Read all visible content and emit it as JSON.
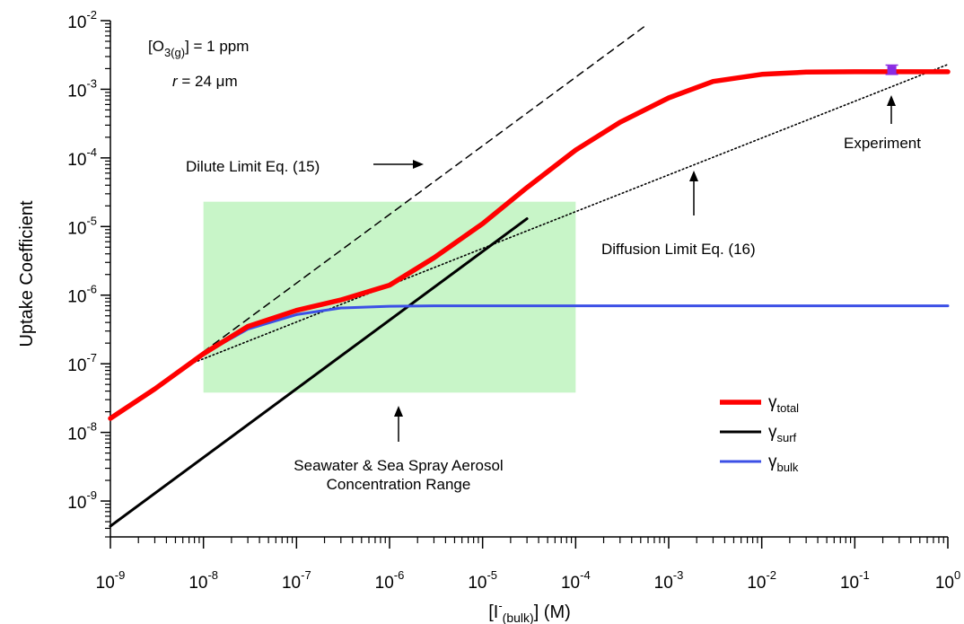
{
  "chart_data": {
    "type": "line",
    "x_scale": "log",
    "y_scale": "log",
    "xlim": [
      1e-09,
      1
    ],
    "ylim": [
      3e-10,
      0.01
    ],
    "grid": false,
    "legend_position": "bottom-right",
    "xlabel": {
      "text": "[I",
      "sup": "-",
      "sub": "(bulk)",
      "tail": "] (M)"
    },
    "ylabel": "Uptake Coefficient",
    "x_ticks": [
      {
        "base": "10",
        "exp": "-9"
      },
      {
        "base": "10",
        "exp": "-8"
      },
      {
        "base": "10",
        "exp": "-7"
      },
      {
        "base": "10",
        "exp": "-6"
      },
      {
        "base": "10",
        "exp": "-5"
      },
      {
        "base": "10",
        "exp": "-4"
      },
      {
        "base": "10",
        "exp": "-3"
      },
      {
        "base": "10",
        "exp": "-2"
      },
      {
        "base": "10",
        "exp": "-1"
      },
      {
        "base": "10",
        "exp": "0"
      }
    ],
    "y_ticks": [
      {
        "base": "10",
        "exp": "-9"
      },
      {
        "base": "10",
        "exp": "-8"
      },
      {
        "base": "10",
        "exp": "-7"
      },
      {
        "base": "10",
        "exp": "-6"
      },
      {
        "base": "10",
        "exp": "-5"
      },
      {
        "base": "10",
        "exp": "-4"
      },
      {
        "base": "10",
        "exp": "-3"
      },
      {
        "base": "10",
        "exp": "-2"
      }
    ],
    "series": [
      {
        "name": "γ total",
        "label_main": "γ",
        "label_sub": "total",
        "color": "#ff0000",
        "x": [
          1e-09,
          3e-09,
          1e-08,
          3e-08,
          1e-07,
          3e-07,
          1e-06,
          3e-06,
          1e-05,
          3e-05,
          0.0001,
          0.0003,
          0.001,
          0.003,
          0.01,
          0.03,
          0.1,
          0.3,
          1
        ],
        "y": [
          1.6e-08,
          4.3e-08,
          1.4e-07,
          3.5e-07,
          6e-07,
          8.5e-07,
          1.4e-06,
          3.5e-06,
          1.1e-05,
          3.7e-05,
          0.00013,
          0.00033,
          0.00075,
          0.0013,
          0.00165,
          0.00178,
          0.0018,
          0.0018,
          0.0018
        ]
      },
      {
        "name": "γ surf",
        "label_main": "γ",
        "label_sub": "surf",
        "color": "#000000",
        "x": [
          1e-09,
          3e-05
        ],
        "y": [
          4.3e-10,
          1.3e-05
        ]
      },
      {
        "name": "γ bulk",
        "label_main": "γ",
        "label_sub": "bulk",
        "color": "#3c50e6",
        "x": [
          1e-08,
          3e-08,
          1e-07,
          3e-07,
          1e-06,
          3e-06,
          1e-05,
          0.0001,
          0.001,
          0.01,
          0.1,
          1
        ],
        "y": [
          1.4e-07,
          3.2e-07,
          5.2e-07,
          6.5e-07,
          6.9e-07,
          7e-07,
          7e-07,
          7e-07,
          7e-07,
          7e-07,
          7e-07,
          7e-07
        ]
      },
      {
        "name": "Dilute Limit Eq. (15)",
        "style": "dashed",
        "color": "#000000",
        "x": [
          6e-09,
          0.0006
        ],
        "y": [
          9e-08,
          0.009
        ]
      },
      {
        "name": "Diffusion Limit Eq. (16)",
        "style": "dotted",
        "color": "#000000",
        "x": [
          6e-09,
          1
        ],
        "y": [
          9e-08,
          0.0023
        ]
      }
    ],
    "experiment_point": {
      "x": 0.25,
      "y": 0.0019,
      "y_err": [
        0.00165,
        0.00225
      ],
      "color": "#8a2be2"
    },
    "shaded_region": {
      "x": [
        1e-08,
        0.0001
      ],
      "y": [
        3.8e-08,
        2.3e-05
      ],
      "color": "#c8f5c8"
    },
    "conditions": {
      "line1": {
        "pre": "[O",
        "sub": "3(g)",
        "post": "] = 1 ppm"
      },
      "line2": {
        "italic": "r",
        "post": " = 24 μm"
      }
    },
    "annotations": {
      "dilute": "Dilute Limit Eq. (15)",
      "diffusion": "Diffusion Limit Eq. (16)",
      "experiment": "Experiment",
      "range_line1": "Seawater & Sea Spray Aerosol",
      "range_line2": "Concentration Range"
    }
  }
}
